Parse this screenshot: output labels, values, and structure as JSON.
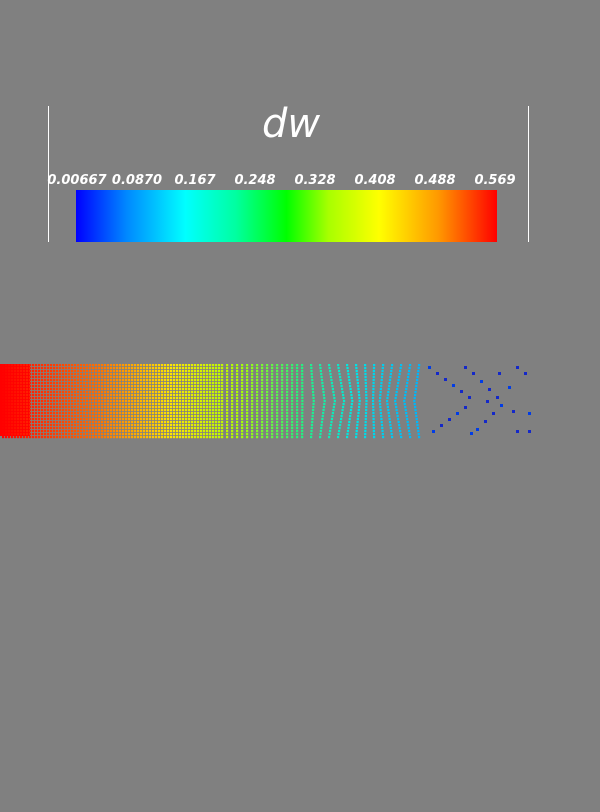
{
  "legend": {
    "title": "dw",
    "ticks": [
      "0.00667",
      "0.0870",
      "0.167",
      "0.248",
      "0.328",
      "0.408",
      "0.488",
      "0.569"
    ],
    "min": 0.00667,
    "max": 0.569,
    "colormap": [
      "#0000ff",
      "#00ffff",
      "#00ff00",
      "#ffff00",
      "#ff0000"
    ]
  },
  "background_color": "#808080",
  "plot_description_colors": {
    "high": "#ff0000",
    "low": "#0000ff"
  }
}
